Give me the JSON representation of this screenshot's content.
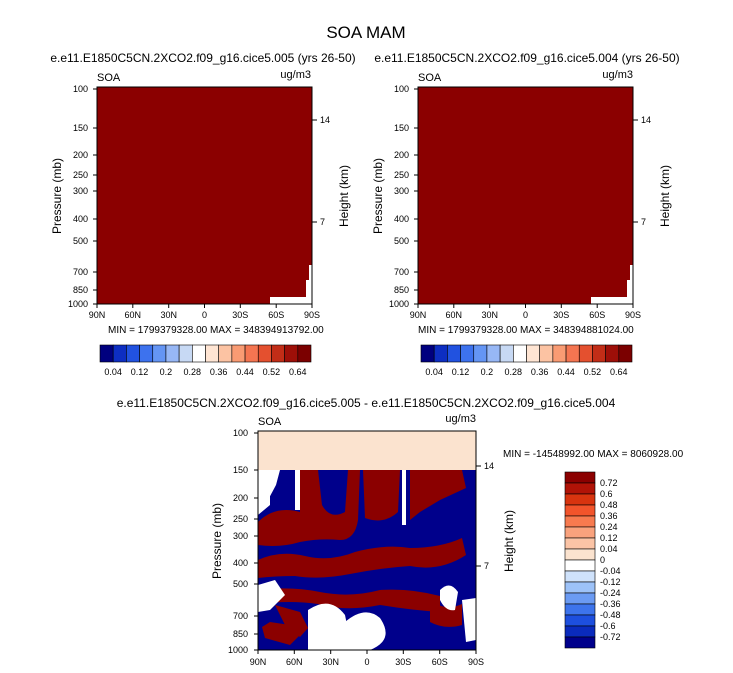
{
  "figure_title": "SOA MAM",
  "chart_data": [
    {
      "type": "heatmap",
      "title": "e.e11.E1850C5CN.2XCO2.f09_g16.cice5.005 (yrs 26-50)",
      "variable_label": "SOA",
      "units_label": "ug/m3",
      "xlabel": "",
      "ylabel": "Pressure (mb)",
      "y2label": "Height (km)",
      "x_ticks": [
        "90N",
        "60N",
        "30N",
        "0",
        "30S",
        "60S",
        "90S"
      ],
      "y_ticks": [
        "100",
        "150",
        "200",
        "250",
        "300",
        "400",
        "500",
        "700",
        "850",
        "1000"
      ],
      "y2_ticks": [
        "14",
        "7"
      ],
      "fill_color": "#8b0000",
      "stats": "MIN = 1799379328.00   MAX = 348394913792.00",
      "colorbar": {
        "colors": [
          "#00007f",
          "#0d2ec2",
          "#2152e0",
          "#3d72ee",
          "#6495f4",
          "#97b7f5",
          "#c7d9f4",
          "#ffffff",
          "#ffe5d3",
          "#fcc3a3",
          "#f99b73",
          "#f47551",
          "#e4502f",
          "#c22d17",
          "#9e0f08",
          "#7b0000"
        ],
        "labels": [
          "0.04",
          "0.12",
          "0.2",
          "0.28",
          "0.36",
          "0.44",
          "0.52",
          "0.64"
        ]
      }
    },
    {
      "type": "heatmap",
      "title": "e.e11.E1850C5CN.2XCO2.f09_g16.cice5.004 (yrs 26-50)",
      "variable_label": "SOA",
      "units_label": "ug/m3",
      "xlabel": "",
      "ylabel": "Pressure (mb)",
      "y2label": "Height (km)",
      "x_ticks": [
        "90N",
        "60N",
        "30N",
        "0",
        "30S",
        "60S",
        "90S"
      ],
      "y_ticks": [
        "100",
        "150",
        "200",
        "250",
        "300",
        "400",
        "500",
        "700",
        "850",
        "1000"
      ],
      "y2_ticks": [
        "14",
        "7"
      ],
      "fill_color": "#8b0000",
      "stats": "MIN = 1799379328.00   MAX = 348394881024.00",
      "colorbar": {
        "colors": [
          "#00007f",
          "#0d2ec2",
          "#2152e0",
          "#3d72ee",
          "#6495f4",
          "#97b7f5",
          "#c7d9f4",
          "#ffffff",
          "#ffe5d3",
          "#fcc3a3",
          "#f99b73",
          "#f47551",
          "#e4502f",
          "#c22d17",
          "#9e0f08",
          "#7b0000"
        ],
        "labels": [
          "0.04",
          "0.12",
          "0.2",
          "0.28",
          "0.36",
          "0.44",
          "0.52",
          "0.64"
        ]
      }
    },
    {
      "type": "heatmap",
      "title": "e.e11.E1850C5CN.2XCO2.f09_g16.cice5.005 - e.e11.E1850C5CN.2XCO2.f09_g16.cice5.004",
      "variable_label": "SOA",
      "units_label": "ug/m3",
      "xlabel": "",
      "ylabel": "Pressure (mb)",
      "y2label": "Height (km)",
      "x_ticks": [
        "90N",
        "60N",
        "30N",
        "0",
        "30S",
        "60S",
        "90S"
      ],
      "y_ticks": [
        "100",
        "150",
        "200",
        "250",
        "300",
        "400",
        "500",
        "700",
        "850",
        "1000"
      ],
      "y2_ticks": [
        "14",
        "7"
      ],
      "stats": "MIN = -14548992.00  MAX = 8060928.00",
      "pattern_colors": {
        "upper_band": "#fbe3cf",
        "positive": "#8b0000",
        "negative": "#00008b",
        "zero": "#ffffff"
      },
      "colorbar": {
        "labels": [
          "0.72",
          "0.6",
          "0.48",
          "0.36",
          "0.24",
          "0.12",
          "0.04",
          "0",
          "-0.04",
          "-0.12",
          "-0.24",
          "-0.36",
          "-0.48",
          "-0.6",
          "-0.72"
        ],
        "colors": [
          "#8b0000",
          "#b11307",
          "#d8340f",
          "#f2542b",
          "#f77a4f",
          "#f9a27d",
          "#fbc4a6",
          "#fbe3cf",
          "#ffffff",
          "#cfe2fb",
          "#9dc2f8",
          "#6b9bf3",
          "#3d74ec",
          "#1d4fde",
          "#0a2bbd",
          "#00008b"
        ]
      }
    }
  ]
}
